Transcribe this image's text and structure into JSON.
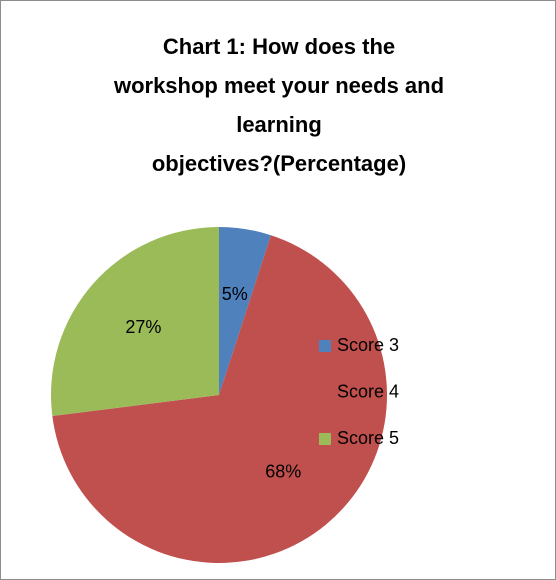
{
  "chart_data": {
    "type": "pie",
    "title": "Chart 1: How does the\nworkshop meet your needs and\nlearning\nobjectives?(Percentage)",
    "categories": [
      "Score 3",
      "Score 4",
      "Score 5"
    ],
    "values": [
      5,
      68,
      27
    ],
    "value_labels": [
      "5%",
      "68%",
      "27%"
    ],
    "colors": [
      "#4f81bd",
      "#c0504d",
      "#9bbb59"
    ],
    "legend": "right"
  }
}
